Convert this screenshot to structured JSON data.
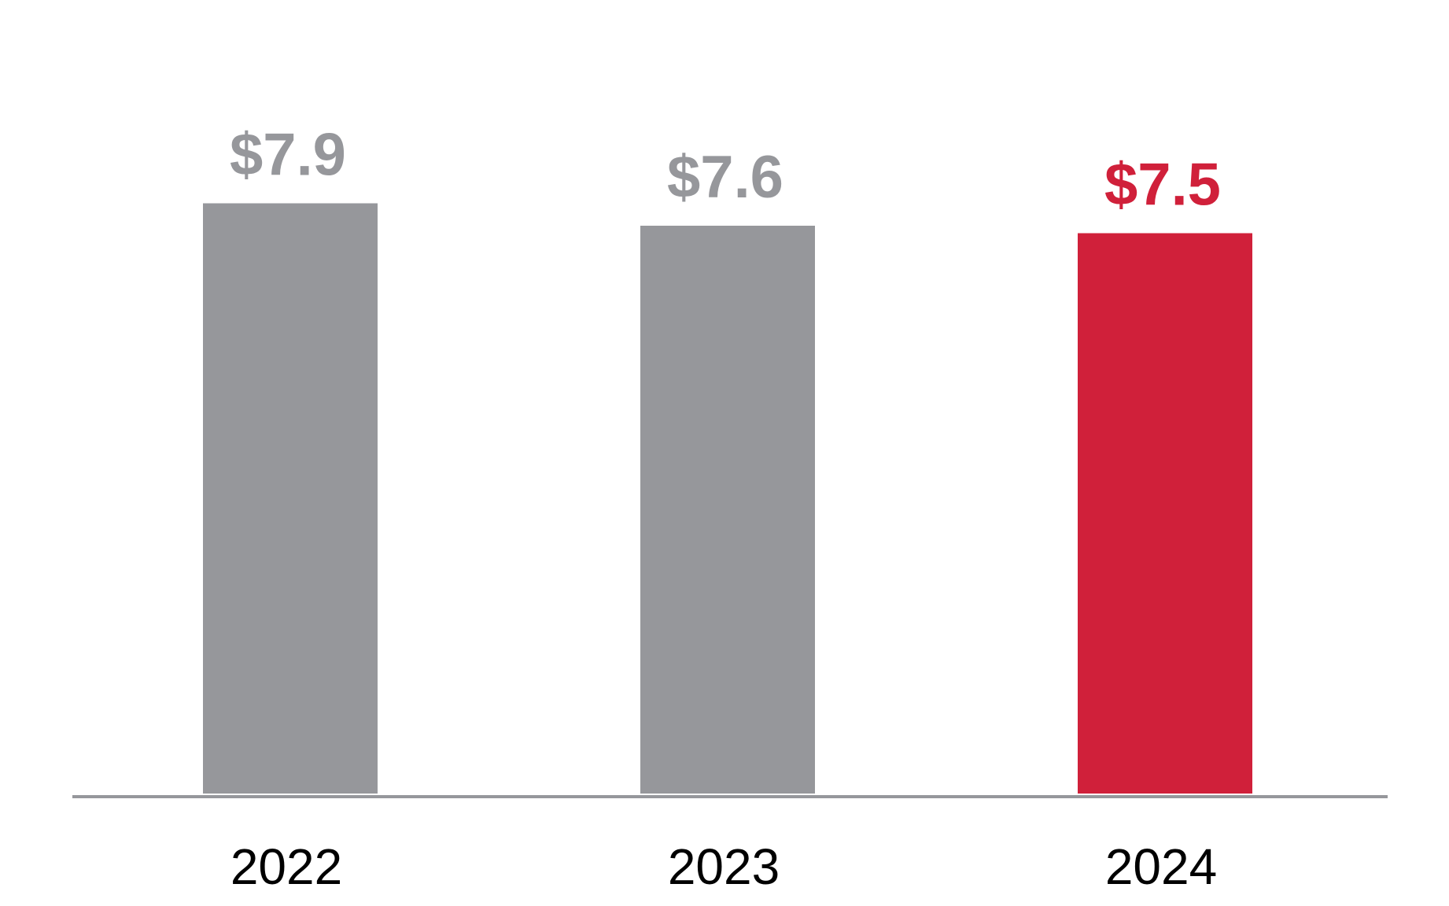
{
  "chart_data": {
    "type": "bar",
    "categories": [
      "2022",
      "2023",
      "2024"
    ],
    "values": [
      7.9,
      7.6,
      7.5
    ],
    "value_labels": [
      "$7.9",
      "$7.6",
      "$7.5"
    ],
    "title": "",
    "xlabel": "",
    "ylabel": "",
    "ylim": [
      0,
      10
    ],
    "grid": false,
    "legend": "none",
    "colors": {
      "bars": [
        "#96979B",
        "#96979B",
        "#D0203A"
      ],
      "labels": [
        "#96979B",
        "#96979B",
        "#D0203A"
      ],
      "axis": "#96979B"
    }
  }
}
